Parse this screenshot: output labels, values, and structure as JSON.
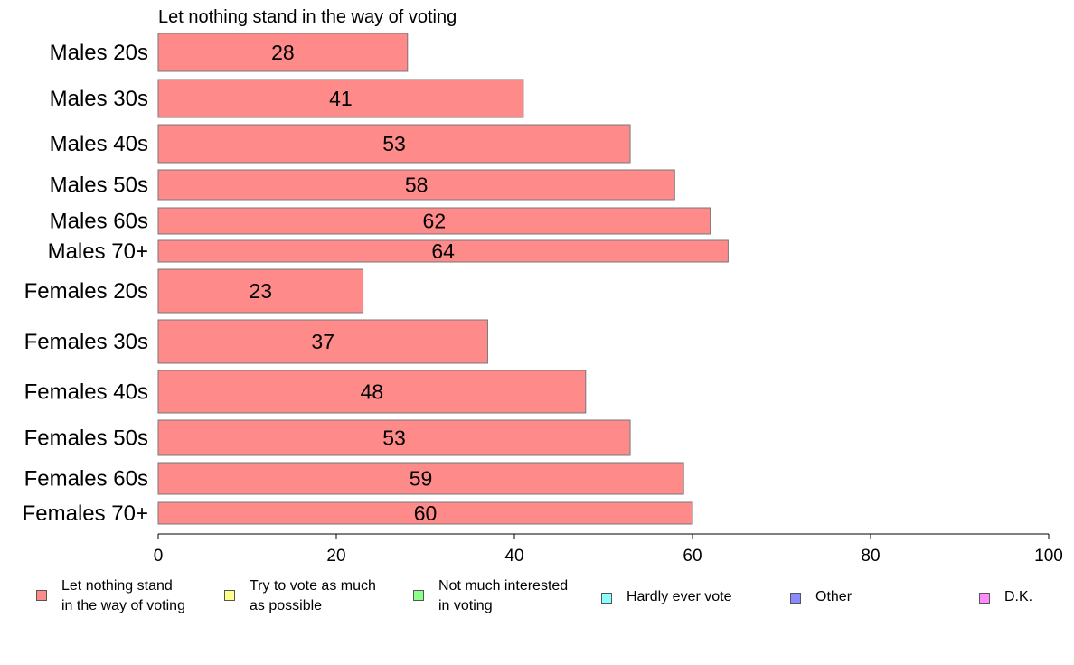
{
  "chart_data": {
    "type": "bar",
    "orientation": "horizontal",
    "title": "Let nothing stand in the way of voting",
    "categories": [
      "Males 20s",
      "Males 30s",
      "Males 40s",
      "Males 50s",
      "Males 60s",
      "Males 70+",
      "Females 20s",
      "Females 30s",
      "Females 40s",
      "Females 50s",
      "Females 60s",
      "Females 70+"
    ],
    "values": [
      28,
      41,
      53,
      58,
      62,
      64,
      23,
      37,
      48,
      53,
      59,
      60
    ],
    "data_labels": [
      "28",
      "41",
      "53",
      "58",
      "62",
      "64",
      "23",
      "37",
      "48",
      "53",
      "59",
      "60"
    ],
    "xlim": [
      0,
      100
    ],
    "xticks": [
      "0",
      "20",
      "40",
      "60",
      "80",
      "100"
    ],
    "grid": false,
    "bar_color": "#ff8a8a",
    "legend_position": "bottom",
    "legend": [
      {
        "label": "Let nothing stand\nin the way of voting",
        "color": "#ff8a8a"
      },
      {
        "label": "Try to vote as much\nas possible",
        "color": "#ffff8a"
      },
      {
        "label": "Not much interested\nin voting",
        "color": "#8aff8a"
      },
      {
        "label": "Hardly ever vote",
        "color": "#8affff"
      },
      {
        "label": "Other",
        "color": "#8a8aff"
      },
      {
        "label": "D.K.",
        "color": "#ff8aff"
      }
    ]
  }
}
